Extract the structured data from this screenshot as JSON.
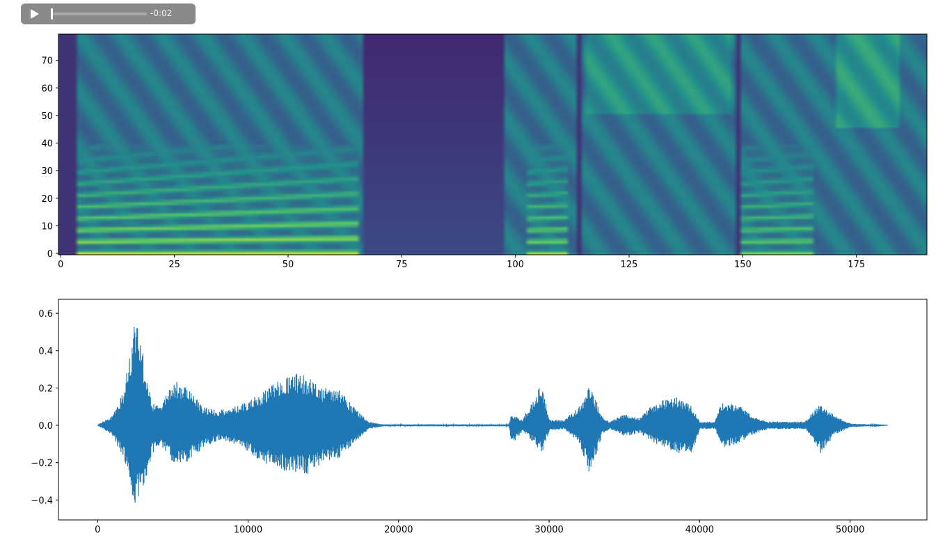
{
  "audio_player": {
    "time": "-0:02",
    "progress": 0
  },
  "chart_data": [
    {
      "type": "heatmap",
      "colormap": "viridis",
      "xlim": [
        -0.5,
        190.5
      ],
      "ylim": [
        -0.5,
        79.5
      ],
      "xticks": [
        0,
        25,
        50,
        75,
        100,
        125,
        150,
        175
      ],
      "yticks": [
        0,
        10,
        20,
        30,
        40,
        50,
        60,
        70
      ]
    },
    {
      "type": "line",
      "color": "#1f77b4",
      "xlim": [
        -2600,
        55100
      ],
      "ylim": [
        -0.507,
        0.675
      ],
      "xticks": [
        0,
        10000,
        20000,
        30000,
        40000,
        50000
      ],
      "yticks": [
        0.6,
        0.4,
        0.2,
        0.0,
        -0.2,
        -0.4
      ],
      "ytick_labels": [
        "0.6",
        "0.4",
        "0.2",
        "0.0",
        "−0.2",
        "−0.4"
      ],
      "envelope": [
        [
          0,
          0,
          0
        ],
        [
          500,
          0.03,
          -0.03
        ],
        [
          1000,
          0.05,
          -0.06
        ],
        [
          1800,
          0.2,
          -0.2
        ],
        [
          2500,
          0.62,
          -0.45
        ],
        [
          3200,
          0.3,
          -0.3
        ],
        [
          3600,
          0.12,
          -0.15
        ],
        [
          4200,
          0.1,
          -0.12
        ],
        [
          5000,
          0.25,
          -0.2
        ],
        [
          6000,
          0.2,
          -0.2
        ],
        [
          7000,
          0.1,
          -0.12
        ],
        [
          8000,
          0.08,
          -0.08
        ],
        [
          9000,
          0.1,
          -0.1
        ],
        [
          10000,
          0.13,
          -0.15
        ],
        [
          11000,
          0.18,
          -0.2
        ],
        [
          12000,
          0.25,
          -0.24
        ],
        [
          13000,
          0.28,
          -0.26
        ],
        [
          14000,
          0.27,
          -0.26
        ],
        [
          15000,
          0.2,
          -0.2
        ],
        [
          16000,
          0.2,
          -0.18
        ],
        [
          17000,
          0.1,
          -0.1
        ],
        [
          18000,
          0.02,
          -0.02
        ],
        [
          19000,
          0.005,
          -0.005
        ],
        [
          27300,
          0.005,
          -0.005
        ],
        [
          27500,
          0.06,
          -0.11
        ],
        [
          28200,
          0.03,
          -0.03
        ],
        [
          29000,
          0.15,
          -0.1
        ],
        [
          29500,
          0.25,
          -0.15
        ],
        [
          30000,
          0.03,
          -0.03
        ],
        [
          31000,
          0.03,
          -0.02
        ],
        [
          32000,
          0.1,
          -0.1
        ],
        [
          32700,
          0.23,
          -0.28
        ],
        [
          33500,
          0.05,
          -0.05
        ],
        [
          34000,
          0.02,
          -0.02
        ],
        [
          35000,
          0.06,
          -0.06
        ],
        [
          36000,
          0.04,
          -0.04
        ],
        [
          37000,
          0.12,
          -0.1
        ],
        [
          38500,
          0.16,
          -0.15
        ],
        [
          39500,
          0.1,
          -0.15
        ],
        [
          40000,
          0.02,
          -0.02
        ],
        [
          41000,
          0.02,
          -0.02
        ],
        [
          41500,
          0.13,
          -0.12
        ],
        [
          42500,
          0.12,
          -0.1
        ],
        [
          43500,
          0.05,
          -0.05
        ],
        [
          44500,
          0.02,
          -0.02
        ],
        [
          47000,
          0.02,
          -0.02
        ],
        [
          48000,
          0.12,
          -0.15
        ],
        [
          49000,
          0.05,
          -0.05
        ],
        [
          50000,
          0.01,
          -0.01
        ],
        [
          52500,
          0,
          0
        ]
      ]
    }
  ]
}
